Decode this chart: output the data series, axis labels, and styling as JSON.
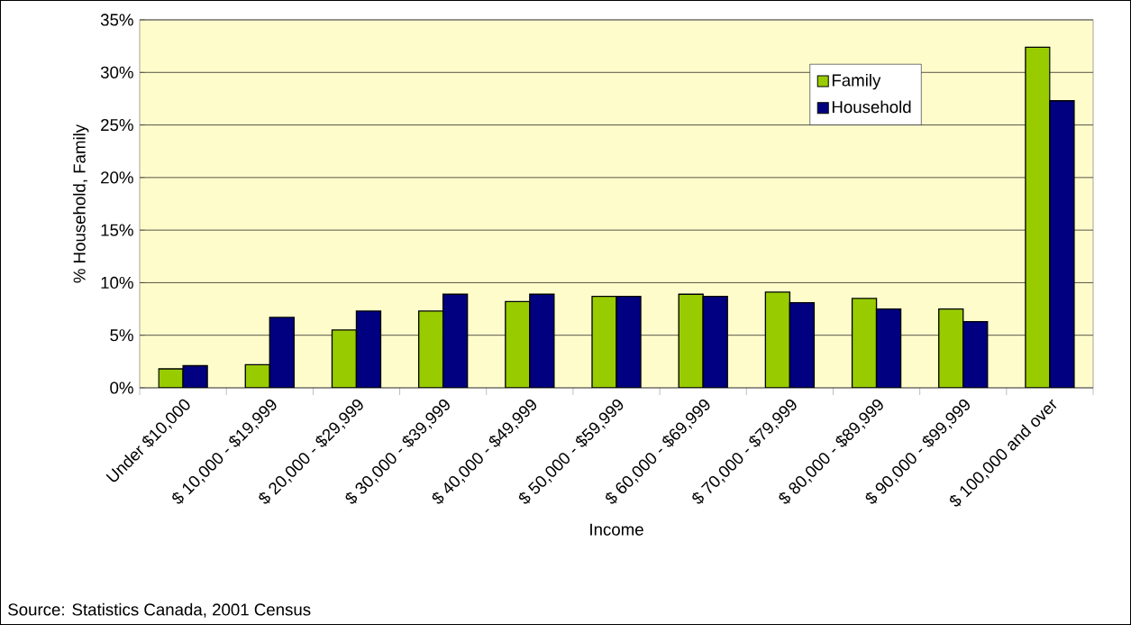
{
  "chart_data": {
    "type": "bar",
    "xlabel": "Income",
    "ylabel": "% Household, Family",
    "categories": [
      "Under $10,000",
      "$ 10,000 - $19,999",
      "$ 20,000 - $29,999",
      "$ 30,000 - $39,999",
      "$ 40,000 - $49,999",
      "$ 50,000 - $59,999",
      "$ 60,000 - $69,999",
      "$ 70,000 - $79,999",
      "$ 80,000 - $89,999",
      "$ 90,000 - $99,999",
      "$ 100,000 and over"
    ],
    "series": [
      {
        "name": "Family",
        "color": "#99cc00",
        "values": [
          1.8,
          2.2,
          5.5,
          7.3,
          8.2,
          8.7,
          8.9,
          9.1,
          8.5,
          7.5,
          32.4
        ]
      },
      {
        "name": "Household",
        "color": "#000080",
        "values": [
          2.1,
          6.7,
          7.3,
          8.9,
          8.9,
          8.7,
          8.7,
          8.1,
          7.5,
          6.3,
          27.3
        ]
      }
    ],
    "ylim": [
      0,
      35
    ],
    "yticks": [
      {
        "value": 0,
        "label": "0%"
      },
      {
        "value": 5,
        "label": "5%"
      },
      {
        "value": 10,
        "label": "10%"
      },
      {
        "value": 15,
        "label": "15%"
      },
      {
        "value": 20,
        "label": "20%"
      },
      {
        "value": 25,
        "label": "25%"
      },
      {
        "value": 30,
        "label": "30%"
      },
      {
        "value": 35,
        "label": "35%"
      }
    ],
    "grid": "y",
    "legend": "top right",
    "annotations": [
      "Source: Statistics Canada, 2001 Census"
    ]
  }
}
